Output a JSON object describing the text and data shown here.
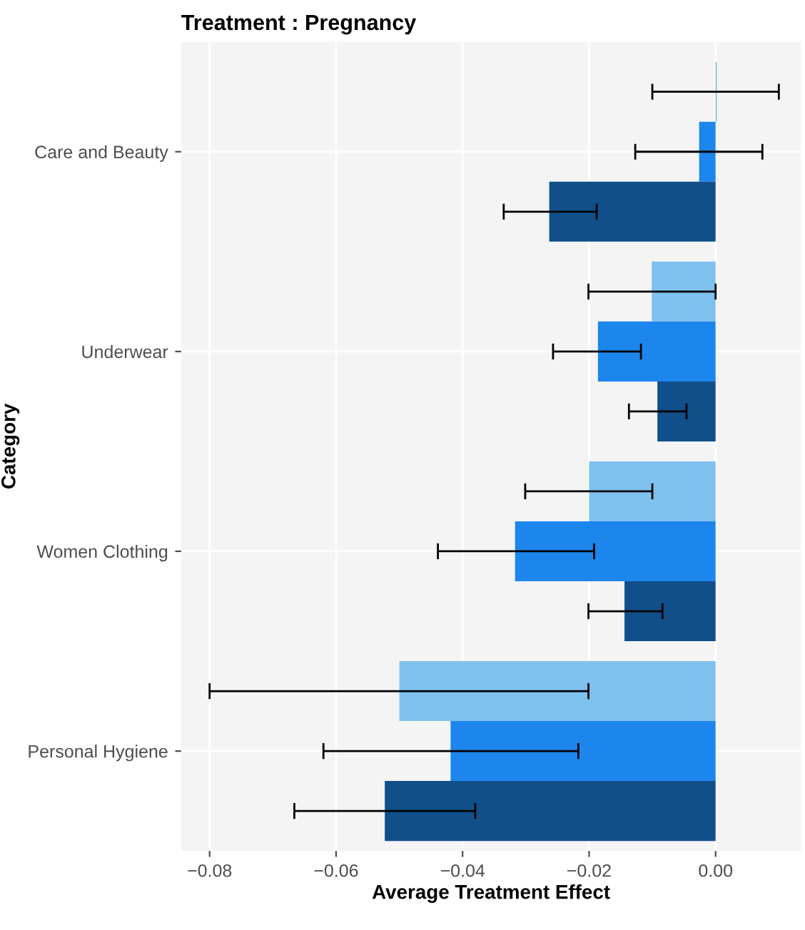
{
  "chart_data": {
    "type": "bar",
    "orientation": "horizontal",
    "title": "Treatment : Pregnancy",
    "xlabel": "Average Treatment Effect",
    "ylabel": "Category",
    "categories": [
      "Care and Beauty",
      "Underwear",
      "Women Clothing",
      "Personal Hygiene"
    ],
    "series": [
      {
        "color": "#7fc1ee",
        "values": [
          0.0002,
          -0.0101,
          -0.02,
          -0.05
        ],
        "errors": [
          [
            -0.01,
            0.01
          ],
          [
            -0.0201,
            0.0
          ],
          [
            -0.0301,
            -0.01
          ],
          [
            -0.08,
            -0.0201
          ]
        ]
      },
      {
        "color": "#1d86ec",
        "values": [
          -0.0026,
          -0.0186,
          -0.0317,
          -0.0419
        ],
        "errors": [
          [
            -0.0127,
            0.0074
          ],
          [
            -0.0257,
            -0.0118
          ],
          [
            -0.0439,
            -0.0192
          ],
          [
            -0.062,
            -0.0217
          ]
        ]
      },
      {
        "color": "#104f8a",
        "values": [
          -0.0263,
          -0.0092,
          -0.0144,
          -0.0523
        ],
        "errors": [
          [
            -0.0335,
            -0.0188
          ],
          [
            -0.0137,
            -0.0046
          ],
          [
            -0.0201,
            -0.0084
          ],
          [
            -0.0666,
            -0.038
          ]
        ]
      }
    ],
    "xlim": [
      -0.0845,
      0.0135
    ],
    "xticks": [
      {
        "value": -0.08,
        "label": "−0.08"
      },
      {
        "value": -0.06,
        "label": "−0.06"
      },
      {
        "value": -0.04,
        "label": "−0.04"
      },
      {
        "value": -0.02,
        "label": "−0.02"
      },
      {
        "value": 0,
        "label": "0.00"
      }
    ],
    "grid": true,
    "legend": false
  }
}
